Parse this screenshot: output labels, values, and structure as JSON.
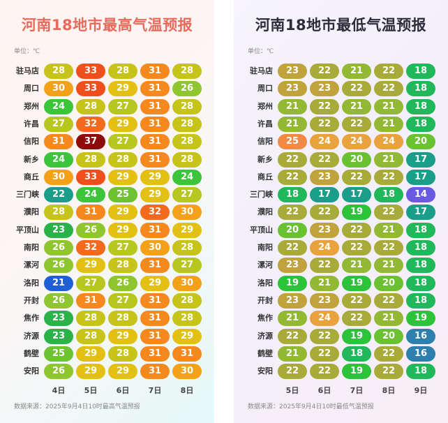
{
  "high": {
    "title": "河南18地市最高气温预报",
    "unit": "单位：℃",
    "days": [
      "4日",
      "5日",
      "6日",
      "7日",
      "8日"
    ],
    "source": "数据来源：2025年9月4日10时最高气温预报",
    "rows": [
      {
        "city": "驻马店",
        "values": [
          28,
          33,
          28,
          31,
          28
        ]
      },
      {
        "city": "周口",
        "values": [
          30,
          33,
          29,
          31,
          26
        ]
      },
      {
        "city": "郑州",
        "values": [
          24,
          28,
          27,
          31,
          28
        ]
      },
      {
        "city": "许昌",
        "values": [
          27,
          32,
          29,
          31,
          28
        ]
      },
      {
        "city": "信阳",
        "values": [
          31,
          37,
          27,
          31,
          28
        ]
      },
      {
        "city": "新乡",
        "values": [
          24,
          28,
          28,
          31,
          28
        ]
      },
      {
        "city": "商丘",
        "values": [
          30,
          33,
          29,
          29,
          24
        ]
      },
      {
        "city": "三门峡",
        "values": [
          22,
          24,
          25,
          29,
          27
        ]
      },
      {
        "city": "濮阳",
        "values": [
          28,
          31,
          29,
          32,
          30
        ]
      },
      {
        "city": "平顶山",
        "values": [
          23,
          26,
          29,
          31,
          29
        ]
      },
      {
        "city": "南阳",
        "values": [
          26,
          32,
          27,
          30,
          28
        ]
      },
      {
        "city": "漯河",
        "values": [
          26,
          29,
          28,
          31,
          27
        ]
      },
      {
        "city": "洛阳",
        "values": [
          21,
          27,
          26,
          29,
          30
        ]
      },
      {
        "city": "开封",
        "values": [
          26,
          31,
          27,
          31,
          28
        ]
      },
      {
        "city": "焦作",
        "values": [
          23,
          28,
          28,
          31,
          28
        ]
      },
      {
        "city": "济源",
        "values": [
          23,
          28,
          29,
          31,
          29
        ]
      },
      {
        "city": "鹤壁",
        "values": [
          25,
          29,
          28,
          31,
          31
        ]
      },
      {
        "city": "安阳",
        "values": [
          26,
          29,
          29,
          31,
          30
        ]
      }
    ]
  },
  "low": {
    "title": "河南18地市最低气温预报",
    "unit": "单位：℃",
    "days": [
      "5日",
      "6日",
      "7日",
      "8日",
      "9日"
    ],
    "source": "数据来源：2025年9月4日10时最低气温预报",
    "rows": [
      {
        "city": "驻马店",
        "values": [
          23,
          22,
          21,
          22,
          18
        ]
      },
      {
        "city": "周口",
        "values": [
          23,
          23,
          22,
          22,
          18
        ]
      },
      {
        "city": "郑州",
        "values": [
          21,
          22,
          21,
          21,
          18
        ]
      },
      {
        "city": "许昌",
        "values": [
          21,
          22,
          22,
          21,
          18
        ]
      },
      {
        "city": "信阳",
        "values": [
          25,
          24,
          24,
          24,
          20
        ]
      },
      {
        "city": "新乡",
        "values": [
          22,
          22,
          20,
          21,
          17
        ]
      },
      {
        "city": "商丘",
        "values": [
          22,
          23,
          22,
          22,
          17
        ]
      },
      {
        "city": "三门峡",
        "values": [
          18,
          17,
          17,
          18,
          14
        ]
      },
      {
        "city": "濮阳",
        "values": [
          22,
          22,
          19,
          22,
          17
        ]
      },
      {
        "city": "平顶山",
        "values": [
          20,
          23,
          22,
          21,
          18
        ]
      },
      {
        "city": "南阳",
        "values": [
          22,
          24,
          22,
          22,
          18
        ]
      },
      {
        "city": "漯河",
        "values": [
          23,
          22,
          21,
          21,
          18
        ]
      },
      {
        "city": "洛阳",
        "values": [
          19,
          21,
          19,
          20,
          18
        ]
      },
      {
        "city": "开封",
        "values": [
          23,
          23,
          22,
          22,
          18
        ]
      },
      {
        "city": "焦作",
        "values": [
          21,
          24,
          22,
          21,
          19
        ]
      },
      {
        "city": "济源",
        "values": [
          22,
          22,
          19,
          20,
          16
        ]
      },
      {
        "city": "鹤壁",
        "values": [
          21,
          22,
          18,
          22,
          16
        ]
      },
      {
        "city": "安阳",
        "values": [
          22,
          22,
          19,
          22,
          18
        ]
      }
    ]
  },
  "colors": {
    "high": {
      "21": "#1e5fd6",
      "22": "#1a9e8a",
      "23": "#2bb34a",
      "24": "#3cc43a",
      "25": "#6cc432",
      "26": "#8fc52e",
      "27": "#b7c71f",
      "28": "#c6c31b",
      "29": "#e3c114",
      "30": "#f4a11a",
      "31": "#f5891d",
      "32": "#f36a1e",
      "33": "#ef4f1d",
      "37": "#8c0b0b"
    },
    "low": {
      "14": "#6a5ae0",
      "16": "#2f7fae",
      "17": "#1a9e8a",
      "18": "#20b85a",
      "19": "#2cc23a",
      "20": "#6ac232",
      "21": "#93b934",
      "22": "#a8ab3a",
      "23": "#c0a33d",
      "24": "#e8a23e",
      "25": "#f08a45"
    }
  }
}
